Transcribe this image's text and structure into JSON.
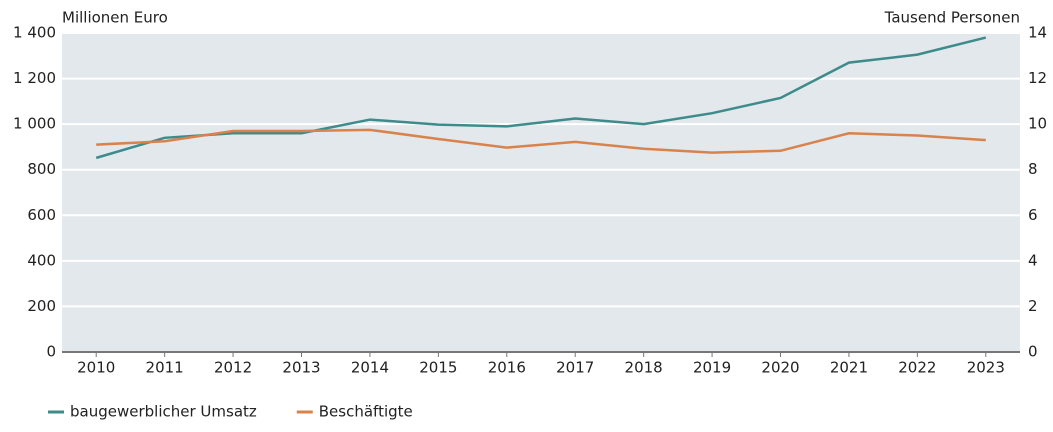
{
  "chart_data": {
    "type": "line",
    "y_label": "Millionen Euro",
    "y2_label": "Tausend Personen",
    "categories": [
      "2010",
      "2011",
      "2012",
      "2013",
      "2014",
      "2015",
      "2016",
      "2017",
      "2018",
      "2019",
      "2020",
      "2021",
      "2022",
      "2023"
    ],
    "series": [
      {
        "name": "baugewerblicher Umsatz",
        "color": "#3d8b8a",
        "values": [
          852,
          940,
          960,
          960,
          1020,
          998,
          990,
          1025,
          1000,
          1048,
          1115,
          1270,
          1305,
          1380
        ]
      },
      {
        "name": "Beschäftigte",
        "color": "#d9824b",
        "axis": "y2",
        "values": [
          9.1,
          9.25,
          9.7,
          9.7,
          9.75,
          9.35,
          8.97,
          9.22,
          8.92,
          8.75,
          8.83,
          9.6,
          9.5,
          9.3
        ]
      }
    ],
    "ylim": [
      0,
      1400
    ],
    "yticks": [
      0,
      200,
      400,
      600,
      800,
      {
        "value": 1000,
        "label": "1 000"
      },
      {
        "value": 1200,
        "label": "1 200"
      },
      {
        "value": 1400,
        "label": "1 400"
      }
    ],
    "y2lim": [
      0,
      14
    ],
    "y2ticks": [
      0,
      2,
      4,
      6,
      8,
      10,
      12,
      14
    ],
    "grid": true,
    "legend": "bottom-left"
  }
}
